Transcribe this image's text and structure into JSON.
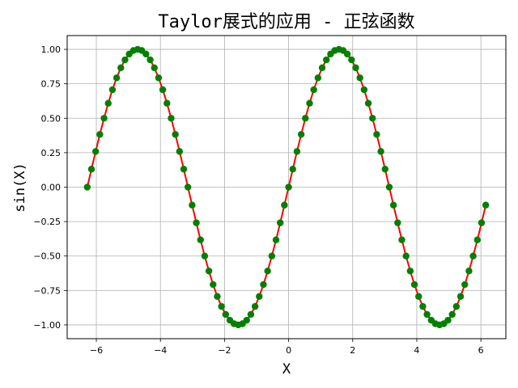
{
  "chart_data": {
    "type": "line",
    "title": "Taylor展式的应用 - 正弦函数",
    "xlabel": "X",
    "ylabel": "sin(X)",
    "xlim": [
      -6.91,
      6.78
    ],
    "ylim": [
      -1.1,
      1.1
    ],
    "grid": true,
    "x_ticks": [
      -6,
      -4,
      -2,
      0,
      2,
      4,
      6
    ],
    "x_tick_labels": [
      "−6",
      "−4",
      "−2",
      "0",
      "2",
      "4",
      "6"
    ],
    "y_ticks": [
      1.0,
      0.75,
      0.5,
      0.25,
      0.0,
      -0.25,
      -0.5,
      -0.75,
      -1.0
    ],
    "y_tick_labels": [
      "1.00",
      "0.75",
      "0.50",
      "0.25",
      "0.00",
      "−0.25",
      "−0.50",
      "−0.75",
      "−1.00"
    ],
    "series": [
      {
        "kind": "line",
        "color": "#ff0000",
        "x_start": -6.2832,
        "x_step": 0.1309,
        "count": 96,
        "function": "sin"
      },
      {
        "kind": "points",
        "color": "#008000",
        "x_start": -6.2832,
        "x_step": 0.1309,
        "count": 96,
        "function": "sin"
      }
    ]
  }
}
